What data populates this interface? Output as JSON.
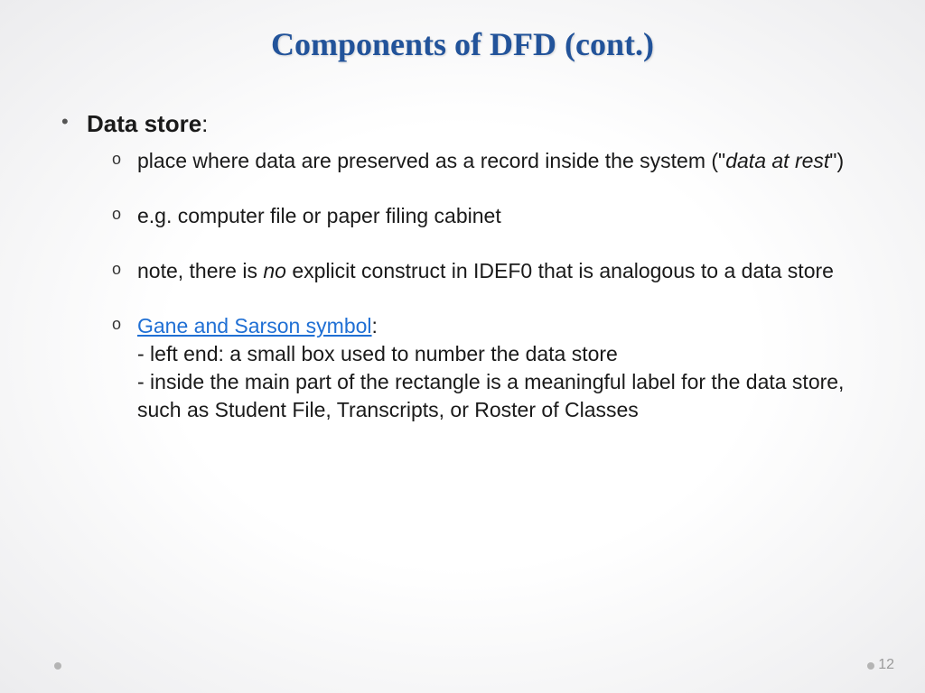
{
  "slide": {
    "title": "Components of DFD (cont.)",
    "page_number": "12",
    "colors": {
      "title_color": "#22539a",
      "link_color": "#1f6fd4",
      "background_edge": "#ececee",
      "background_center": "#ffffff",
      "page_num_color": "#9a9a9a"
    },
    "typography": {
      "title_font": "Book Antiqua / Palatino serif",
      "title_size_pt": 27,
      "title_weight": "bold",
      "body_font": "Century Gothic",
      "heading_size_pt": 20,
      "body_size_pt": 17
    },
    "main_item": {
      "heading": "Data store",
      "heading_suffix": ":",
      "sub_items": [
        {
          "pre": "place where data are preserved as a record inside the system (\"",
          "ital": "data at rest",
          "post": "\")"
        },
        {
          "plain": "e.g. computer file or paper filing cabinet"
        },
        {
          "pre": "note, there is ",
          "ital": "no",
          "post": " explicit construct in IDEF0 that is analogous to a data store"
        },
        {
          "link": "Gane and Sarson symbol",
          "after_link": ":",
          "line2": "- left end: a small box used to number the data store",
          "line3": "- inside the main part of the rectangle is a meaningful label for the data store, such as Student File, Transcripts, or Roster of Classes"
        }
      ]
    }
  }
}
